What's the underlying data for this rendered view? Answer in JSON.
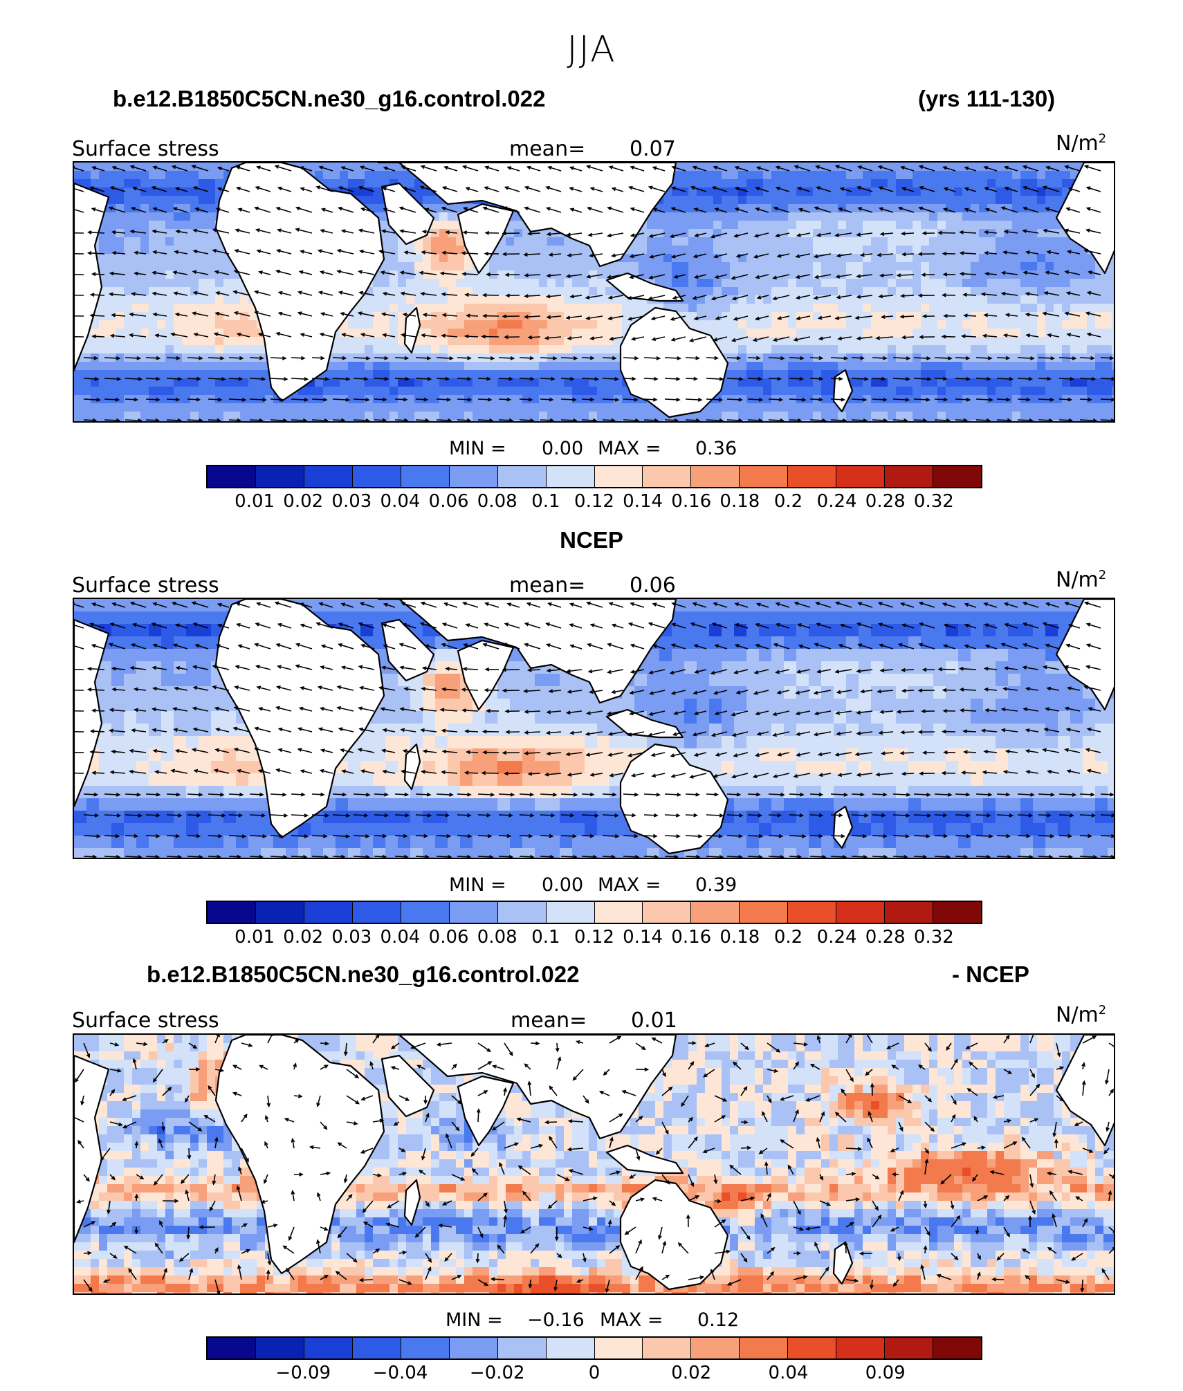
{
  "title": "JJA",
  "panels": [
    {
      "title_left": "b.e12.B1850C5CN.ne30_g16.control.022",
      "title_right": "(yrs 111-130)",
      "label": "Surface stress",
      "mean_label": "mean=",
      "mean_value": "0.07",
      "units_base": "N/m",
      "units_sup": "2",
      "min_label": "MIN =",
      "min_value": "0.00",
      "max_label": "MAX =",
      "max_value": "0.36",
      "scale": "abs",
      "tick_labels": [
        "0.01",
        "0.02",
        "0.03",
        "0.04",
        "0.06",
        "0.08",
        "0.1",
        "0.12",
        "0.14",
        "0.16",
        "0.18",
        "0.2",
        "0.24",
        "0.28",
        "0.32"
      ]
    },
    {
      "title_left": "NCEP",
      "title_right": "",
      "label": "Surface stress",
      "mean_label": "mean=",
      "mean_value": "0.06",
      "units_base": "N/m",
      "units_sup": "2",
      "min_label": "MIN =",
      "min_value": "0.00",
      "max_label": "MAX =",
      "max_value": "0.39",
      "scale": "abs",
      "tick_labels": [
        "0.01",
        "0.02",
        "0.03",
        "0.04",
        "0.06",
        "0.08",
        "0.1",
        "0.12",
        "0.14",
        "0.16",
        "0.18",
        "0.2",
        "0.24",
        "0.28",
        "0.32"
      ]
    },
    {
      "title_left": "b.e12.B1850C5CN.ne30_g16.control.022",
      "title_right": "- NCEP",
      "label": "Surface stress",
      "mean_label": "mean=",
      "mean_value": "0.01",
      "units_base": "N/m",
      "units_sup": "2",
      "min_label": "MIN =",
      "min_value": "−0.16",
      "max_label": "MAX =",
      "max_value": "0.12",
      "scale": "diff",
      "tick_labels": [
        "−0.09",
        "−0.04",
        "−0.02",
        "0",
        "0.02",
        "0.04",
        "0.09"
      ]
    }
  ],
  "colors": {
    "scale16": [
      "#08088f",
      "#0a22b4",
      "#1a3fd6",
      "#2e5ae8",
      "#4a78ee",
      "#7a9cf2",
      "#a9c1f5",
      "#d3e2f9",
      "#fde6d6",
      "#fbc8ad",
      "#f7a07a",
      "#f27a4c",
      "#e9502a",
      "#d6301a",
      "#b01a10",
      "#800806"
    ],
    "land": "#ffffff",
    "coast": "#000000",
    "vector": "#000000"
  }
}
